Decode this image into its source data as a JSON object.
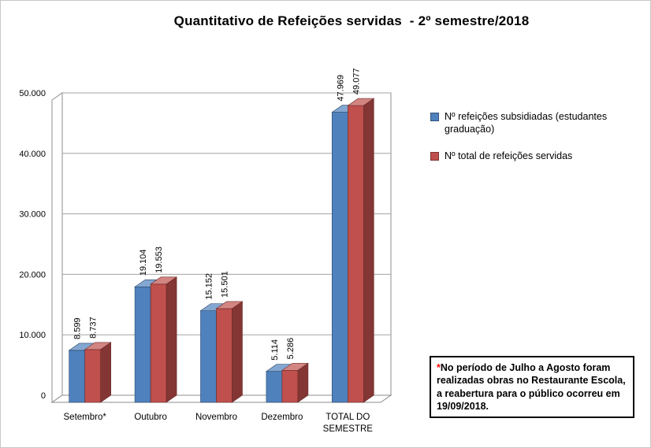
{
  "chart_data": {
    "type": "bar",
    "style": "3d-clustered-column",
    "title": "Quantitativo de Refeições servidas  - 2º semestre/2018",
    "categories": [
      "Setembro*",
      "Outubro",
      "Novembro",
      "Dezembro",
      "TOTAL DO SEMESTRE"
    ],
    "series": [
      {
        "name": "Nº refeições subsidiadas (estudantes graduação)",
        "color": "#4F81BD",
        "values": [
          8599,
          19104,
          15152,
          5114,
          47969
        ],
        "data_labels": [
          "8.599",
          "19.104",
          "15.152",
          "5.114",
          "47.969"
        ]
      },
      {
        "name": "Nº total de refeições servidas",
        "color": "#C0504D",
        "values": [
          8737,
          19553,
          15501,
          5286,
          49077
        ],
        "data_labels": [
          "8.737",
          "19.553",
          "15.501",
          "5.286",
          "49.077"
        ]
      }
    ],
    "ylim": [
      0,
      50000
    ],
    "yticks": [
      0,
      10000,
      20000,
      30000,
      40000,
      50000
    ],
    "ytick_labels": [
      "0",
      "10.000",
      "20.000",
      "30.000",
      "40.000",
      "50.000"
    ],
    "grid": true,
    "legend_position": "right",
    "value_label_orientation": "vertical"
  },
  "annotation": {
    "asterisk": "*",
    "asterisk_color": "#FF0000",
    "text": "No período de Julho a Agosto foram realizadas obras no Restaurante Escola, a reabertura para o público ocorreu em 19/09/2018."
  },
  "colors": {
    "gridline": "#A3A3A3",
    "wall_outline": "#8C8C8C",
    "background": "#FFFFFF"
  }
}
